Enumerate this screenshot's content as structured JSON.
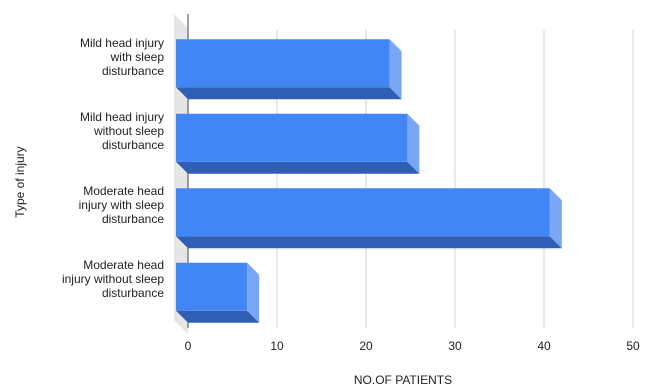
{
  "chart_data": {
    "type": "bar",
    "orientation": "horizontal",
    "style": "3d",
    "categories": [
      "Mild head injury\nwith sleep\ndisturbance",
      "Mild head injury\nwithout sleep\ndisturbance",
      "Moderate head\ninjury with sleep\ndisturbance",
      "Moderate head\ninjury without sleep\ndisturbance"
    ],
    "values": [
      24,
      26,
      42,
      8
    ],
    "xlabel": "NO.OF PATIENTS",
    "ylabel": "Type of injury",
    "xlim": [
      0,
      50
    ],
    "xticks": [
      "0",
      "10",
      "20",
      "30",
      "40",
      "50"
    ],
    "grid": true,
    "legend": "none",
    "colors": {
      "bar_front": "#4285f4",
      "bar_side": "#7aa7f5",
      "bar_bottom": "#2f5fb4",
      "wall": "#e6e6e6",
      "grid": "#d0d0d0",
      "axis": "#444444"
    }
  }
}
